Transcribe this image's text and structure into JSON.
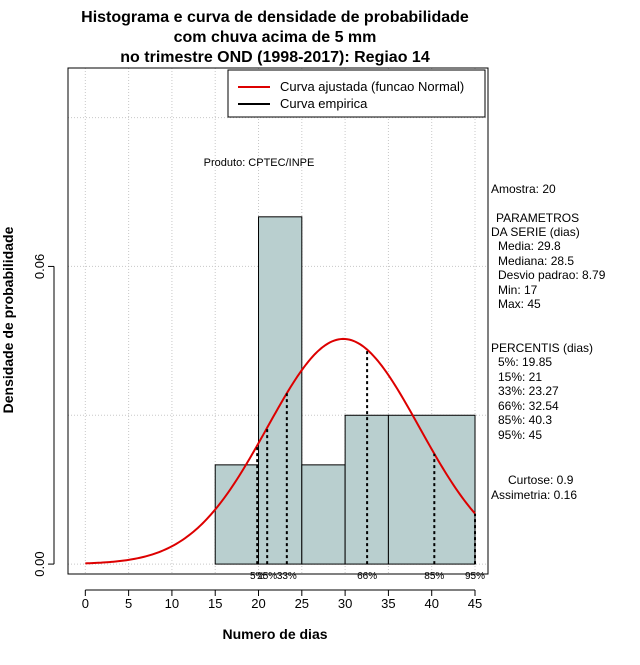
{
  "chart_data": {
    "type": "histogram",
    "title_lines": [
      "Histograma e curva de densidade de probabilidade",
      "com chuva acima de 5 mm",
      "no trimestre OND (1998-2017): Regiao 14"
    ],
    "xlabel": "Numero de dias",
    "ylabel": "Densidade de probabilidade",
    "xlim": [
      -2,
      46.5
    ],
    "ylim": [
      -0.002,
      0.1
    ],
    "x_ticks": [
      0,
      5,
      10,
      15,
      20,
      25,
      30,
      35,
      40,
      45
    ],
    "y_ticks": [
      0.0,
      0.06
    ],
    "y_tick_labels": [
      "0.00",
      "0.06"
    ],
    "bins": [
      {
        "start": 15,
        "end": 20,
        "density": 0.02
      },
      {
        "start": 20,
        "end": 25,
        "density": 0.07
      },
      {
        "start": 25,
        "end": 30,
        "density": 0.02
      },
      {
        "start": 30,
        "end": 35,
        "density": 0.03
      },
      {
        "start": 35,
        "end": 45,
        "density": 0.03
      }
    ],
    "normal_fit": {
      "mean": 29.8,
      "sd": 8.79,
      "x_range": [
        0,
        45
      ]
    },
    "percentile_lines": [
      {
        "label": "5%",
        "x": 19.85
      },
      {
        "label": "15%",
        "x": 21
      },
      {
        "label": "33%",
        "x": 23.27
      },
      {
        "label": "66%",
        "x": 32.54
      },
      {
        "label": "85%",
        "x": 40.3
      },
      {
        "label": "95%",
        "x": 45
      }
    ],
    "legend": {
      "position": "top-right",
      "entries": [
        {
          "label": "Curva ajustada (funcao Normal)",
          "color": "#dd0000"
        },
        {
          "label": "Curva empirica",
          "color": "#000000"
        }
      ]
    },
    "annotation": "Produto: CPTEC/INPE",
    "grid": true,
    "bar_color": "#b9cfcf",
    "curve_color": "#dd0000"
  },
  "stats_panel": {
    "amostra": "Amostra: 20",
    "parametros_title_1": "PARAMETROS",
    "parametros_title_2": "DA SERIE (dias)",
    "media": "Media: 29.8",
    "mediana": "Mediana: 28.5",
    "desvio": "Desvio padrao: 8.79",
    "min": "Min: 17",
    "max": "Max: 45",
    "percentis_title": "PERCENTIS (dias)",
    "p5": "5%: 19.85",
    "p15": "15%: 21",
    "p33": "33%: 23.27",
    "p66": "66%: 32.54",
    "p85": "85%: 40.3",
    "p95": "95%: 45",
    "curtose": "Curtose: 0.9",
    "assimetria": "Assimetria: 0.16"
  }
}
